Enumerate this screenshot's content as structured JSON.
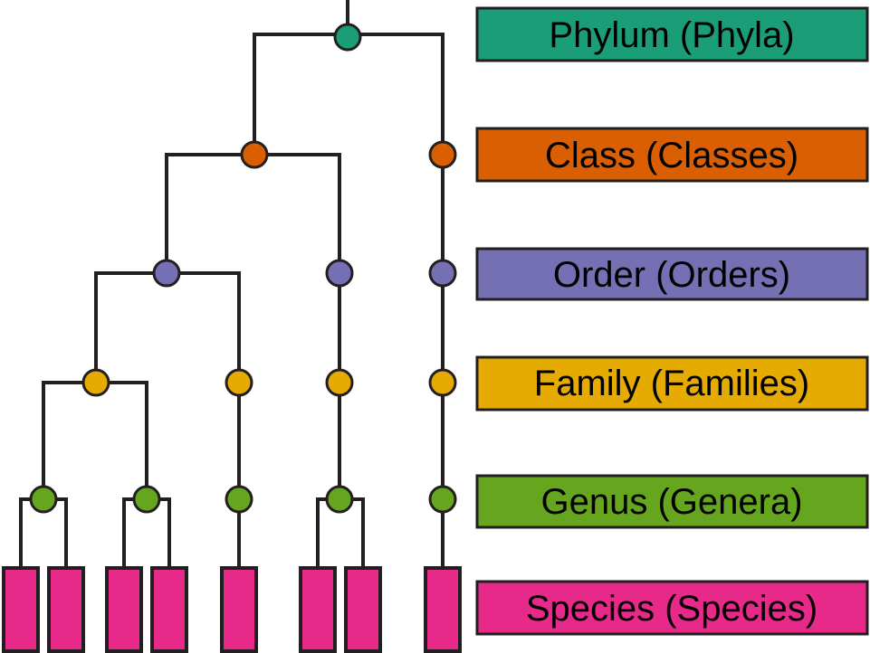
{
  "ranks": [
    {
      "key": "phylum",
      "label": "Phylum (Phyla)",
      "color": "#1b9e77"
    },
    {
      "key": "class",
      "label": "Class (Classes)",
      "color": "#d95f02"
    },
    {
      "key": "order",
      "label": "Order (Orders)",
      "color": "#7570b3"
    },
    {
      "key": "family",
      "label": "Family (Families)",
      "color": "#e6ab02"
    },
    {
      "key": "genus",
      "label": "Genus (Genera)",
      "color": "#66a61e"
    },
    {
      "key": "species",
      "label": "Species (Species)",
      "color": "#e7298a"
    }
  ],
  "colors": {
    "line": "#231f20",
    "background": "#ffffff"
  }
}
